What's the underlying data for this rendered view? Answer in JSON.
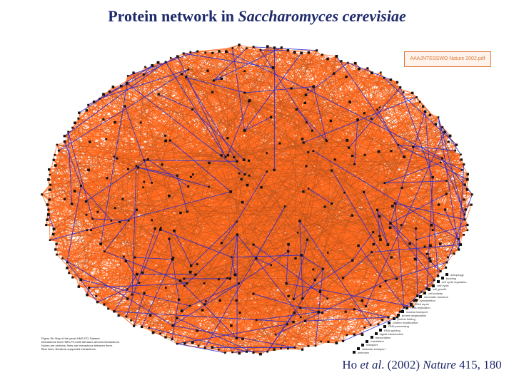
{
  "title": {
    "prefix": "Protein network in ",
    "species": "Saccharomyces cerevisiae"
  },
  "stamp": {
    "text": "AAAJNTESSWO Nature 2002.pdf"
  },
  "citation": {
    "author": "Ho ",
    "etal": "et al",
    "year": ". (2002) ",
    "journal": "Nature",
    "volume": " 415, 180"
  },
  "colors": {
    "edge_primary": "#ff6a1f",
    "edge_secondary": "#b0501e",
    "edge_blue": "#2a2ad0",
    "node": "#111111",
    "title": "#1f2a6b"
  },
  "legend": {
    "items": [
      "autophagy",
      "budding",
      "cell cycle regulation",
      "cell cycle",
      "cell growth",
      "cell polarity",
      "chromatin structure",
      "cytoskeleton",
      "DNA repair",
      "DNA replication",
      "nuclear transport",
      "protein degradation",
      "protein folding",
      "protein modification",
      "RNA processing",
      "RNA splicing",
      "signal transduction",
      "transcription",
      "translation",
      "transport",
      "vesicular transport",
      "unknown"
    ]
  },
  "figure_caption": {
    "lines": [
      "Figure 5b: Map of the yeast HMS-PCI Dataset.",
      "Interactions from HMS-PCI with literature-derived interactions.",
      "Nodes are proteins; lines are interactions between them.",
      "Blue lines: literature-supported interactions."
    ]
  }
}
